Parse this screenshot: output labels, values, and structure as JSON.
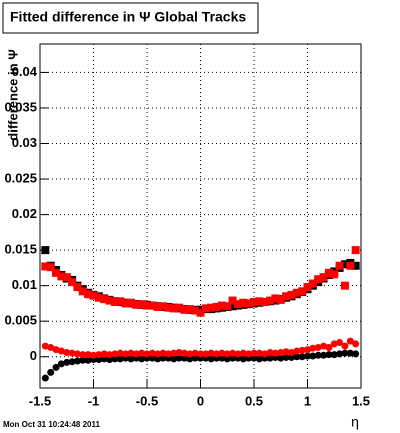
{
  "chart_data": {
    "type": "scatter",
    "title": "Fitted difference in Ψ Global Tracks",
    "y_label": "difference in Ψ",
    "x_label": "η",
    "footer": "Mon Oct 31 10:24:48 2011",
    "xlim": [
      -1.5,
      1.5
    ],
    "ylim": [
      -0.0044,
      0.044
    ],
    "xticks": [
      -1.5,
      -1,
      -0.5,
      0,
      0.5,
      1,
      1.5
    ],
    "yticks": [
      0,
      0.005,
      0.01,
      0.015,
      0.02,
      0.025,
      0.03,
      0.035,
      0.04
    ],
    "grid": true,
    "x": [
      -1.45,
      -1.4,
      -1.35,
      -1.3,
      -1.25,
      -1.2,
      -1.15,
      -1.1,
      -1.05,
      -1.0,
      -0.95,
      -0.9,
      -0.85,
      -0.8,
      -0.75,
      -0.7,
      -0.65,
      -0.6,
      -0.55,
      -0.5,
      -0.45,
      -0.4,
      -0.35,
      -0.3,
      -0.25,
      -0.2,
      -0.15,
      -0.1,
      -0.05,
      0,
      0.05,
      0.1,
      0.15,
      0.2,
      0.25,
      0.3,
      0.35,
      0.4,
      0.45,
      0.5,
      0.55,
      0.6,
      0.65,
      0.7,
      0.75,
      0.8,
      0.85,
      0.9,
      0.95,
      1.0,
      1.05,
      1.1,
      1.15,
      1.2,
      1.25,
      1.3,
      1.35,
      1.4,
      1.45
    ],
    "series": [
      {
        "color": "#000000",
        "marker": "square",
        "values": [
          0.015,
          0.0128,
          0.0122,
          0.0115,
          0.011,
          0.0108,
          0.01,
          0.0095,
          0.009,
          0.0087,
          0.0085,
          0.0082,
          0.008,
          0.0078,
          0.0077,
          0.0076,
          0.0075,
          0.0074,
          0.0073,
          0.0073,
          0.0072,
          0.0071,
          0.007,
          0.007,
          0.0069,
          0.0068,
          0.0067,
          0.0066,
          0.0066,
          0.0066,
          0.0067,
          0.0067,
          0.0068,
          0.0069,
          0.007,
          0.0071,
          0.0072,
          0.0073,
          0.0074,
          0.0075,
          0.0076,
          0.0077,
          0.0078,
          0.0079,
          0.0081,
          0.0083,
          0.0085,
          0.0088,
          0.0091,
          0.0095,
          0.01,
          0.0105,
          0.011,
          0.0115,
          0.012,
          0.0125,
          0.013,
          0.0132,
          0.0128
        ]
      },
      {
        "color": "#ff0000",
        "marker": "square",
        "values": [
          0.0127,
          0.0126,
          0.0118,
          0.0113,
          0.0112,
          0.0105,
          0.0098,
          0.0092,
          0.0088,
          0.0086,
          0.0083,
          0.0081,
          0.0079,
          0.0077,
          0.0078,
          0.0075,
          0.0076,
          0.0073,
          0.0074,
          0.0072,
          0.0072,
          0.007,
          0.0071,
          0.0069,
          0.0068,
          0.0069,
          0.0066,
          0.0067,
          0.0065,
          0.0062,
          0.0068,
          0.0069,
          0.007,
          0.0072,
          0.0071,
          0.0079,
          0.0074,
          0.0076,
          0.0075,
          0.0077,
          0.0078,
          0.0077,
          0.0079,
          0.0082,
          0.008,
          0.0085,
          0.0087,
          0.009,
          0.0092,
          0.0098,
          0.0103,
          0.0109,
          0.0112,
          0.0118,
          0.0116,
          0.0128,
          0.01,
          0.0128,
          0.015
        ]
      },
      {
        "color": "#000000",
        "marker": "circle",
        "values": [
          -0.003,
          -0.0022,
          -0.0015,
          -0.001,
          -0.0008,
          -0.0007,
          -0.0006,
          -0.0005,
          -0.0005,
          -0.0004,
          -0.0004,
          -0.0003,
          -0.0004,
          -0.0003,
          -0.0003,
          -0.0002,
          -0.0003,
          -0.0002,
          -0.0003,
          -0.0002,
          -0.0002,
          -0.0003,
          -0.0002,
          -0.0002,
          -0.0003,
          -0.0002,
          -0.0002,
          -0.0003,
          -0.0002,
          -0.0002,
          -0.0002,
          -0.0003,
          -0.0002,
          -0.0002,
          -0.0003,
          -0.0002,
          -0.0002,
          -0.0003,
          -0.0002,
          -0.0002,
          -0.0003,
          -0.0002,
          -0.0002,
          -0.0001,
          -0.0002,
          -0.0001,
          -0.0001,
          0.0,
          0.0,
          0.0001,
          0.0001,
          0.0002,
          0.0002,
          0.0003,
          0.0003,
          0.0004,
          0.0005,
          0.0005,
          0.0004
        ]
      },
      {
        "color": "#ff0000",
        "marker": "circle",
        "values": [
          0.0015,
          0.0013,
          0.001,
          0.0008,
          0.0006,
          0.0005,
          0.0004,
          0.0003,
          0.0003,
          0.0002,
          0.0003,
          0.0004,
          0.0003,
          0.0004,
          0.0005,
          0.0004,
          0.0005,
          0.0004,
          0.0005,
          0.0004,
          0.0005,
          0.0004,
          0.0005,
          0.0004,
          0.0005,
          0.0006,
          0.0005,
          0.0004,
          0.0005,
          0.0004,
          0.0004,
          0.0005,
          0.0004,
          0.0005,
          0.0004,
          0.0005,
          0.0004,
          0.0005,
          0.0004,
          0.0005,
          0.0005,
          0.0004,
          0.0006,
          0.0005,
          0.0006,
          0.0007,
          0.0006,
          0.0008,
          0.0009,
          0.001,
          0.0012,
          0.0013,
          0.0015,
          0.0013,
          0.0018,
          0.002,
          0.0015,
          0.0022,
          0.0018
        ]
      }
    ]
  }
}
